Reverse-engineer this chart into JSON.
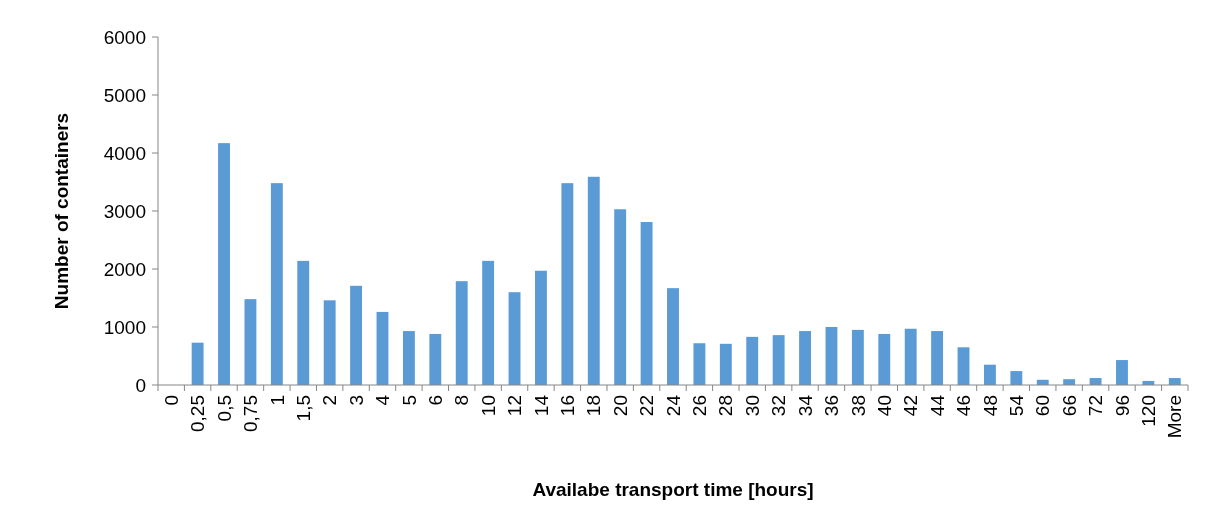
{
  "chart_data": {
    "type": "bar",
    "xlabel": "Availabe transport time [hours]",
    "ylabel": "Number of containers",
    "categories": [
      "0",
      "0,25",
      "0,5",
      "0,75",
      "1",
      "1,5",
      "2",
      "3",
      "4",
      "5",
      "6",
      "8",
      "10",
      "12",
      "14",
      "16",
      "18",
      "20",
      "22",
      "24",
      "26",
      "28",
      "30",
      "32",
      "34",
      "36",
      "38",
      "40",
      "42",
      "44",
      "46",
      "48",
      "54",
      "60",
      "66",
      "72",
      "96",
      "120",
      "More"
    ],
    "values": [
      0,
      730,
      4170,
      1480,
      3480,
      2140,
      1460,
      1710,
      1260,
      930,
      880,
      1790,
      2140,
      1600,
      1970,
      3480,
      3590,
      3030,
      2810,
      1670,
      720,
      710,
      830,
      860,
      930,
      1000,
      950,
      880,
      970,
      930,
      650,
      350,
      240,
      90,
      100,
      120,
      430,
      70,
      120
    ],
    "color": "#5b9bd5",
    "ylim": [
      0,
      6000
    ],
    "yticks": [
      0,
      1000,
      2000,
      3000,
      4000,
      5000,
      6000
    ],
    "grid": false
  }
}
